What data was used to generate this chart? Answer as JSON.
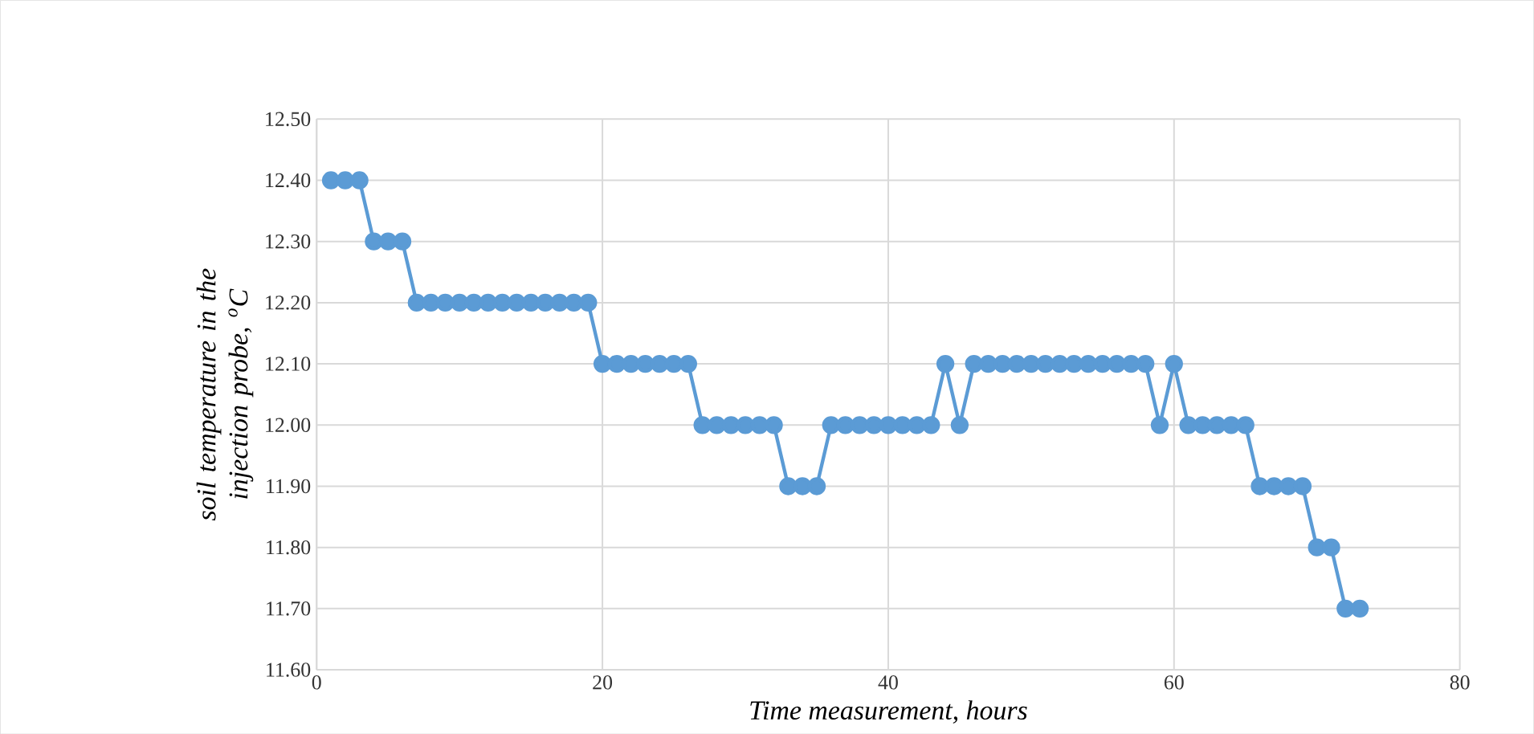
{
  "chart_data": {
    "type": "line",
    "xlabel": "Time measurement, hours",
    "ylabel": "soil temperature in the injection probe, $^{o}$C",
    "x": [
      1,
      2,
      3,
      4,
      5,
      6,
      7,
      8,
      9,
      10,
      11,
      12,
      13,
      14,
      15,
      16,
      17,
      18,
      19,
      20,
      21,
      22,
      23,
      24,
      25,
      26,
      27,
      28,
      29,
      30,
      31,
      32,
      33,
      34,
      35,
      36,
      37,
      38,
      39,
      40,
      41,
      42,
      43,
      44,
      45,
      46,
      47,
      48,
      49,
      50,
      51,
      52,
      53,
      54,
      55,
      56,
      57,
      58,
      59,
      60,
      61,
      62,
      63,
      64,
      65,
      66,
      67,
      68,
      69,
      70,
      71,
      72,
      73
    ],
    "series": [
      {
        "color": "#5b9bd5",
        "values": [
          12.4,
          12.4,
          12.4,
          12.3,
          12.3,
          12.3,
          12.2,
          12.2,
          12.2,
          12.2,
          12.2,
          12.2,
          12.2,
          12.2,
          12.2,
          12.2,
          12.2,
          12.2,
          12.2,
          12.1,
          12.1,
          12.1,
          12.1,
          12.1,
          12.1,
          12.1,
          12.0,
          12.0,
          12.0,
          12.0,
          12.0,
          12.0,
          11.9,
          11.9,
          11.9,
          12.0,
          12.0,
          12.0,
          12.0,
          12.0,
          12.0,
          12.0,
          12.0,
          12.1,
          12.0,
          12.1,
          12.1,
          12.1,
          12.1,
          12.1,
          12.1,
          12.1,
          12.1,
          12.1,
          12.1,
          12.1,
          12.1,
          12.1,
          12.0,
          12.1,
          12.0,
          12.0,
          12.0,
          12.0,
          12.0,
          11.9,
          11.9,
          11.9,
          11.9,
          11.8,
          11.8,
          11.7,
          11.7
        ]
      }
    ],
    "xlim": [
      0,
      80
    ],
    "xticks": [
      0,
      20,
      40,
      60,
      80
    ],
    "ylim": [
      11.6,
      12.5
    ],
    "yticks": [
      {
        "value": 11.6,
        "label": "11.60"
      },
      {
        "value": 11.7,
        "label": "11.70"
      },
      {
        "value": 11.8,
        "label": "11.80"
      },
      {
        "value": 11.9,
        "label": "11.90"
      },
      {
        "value": 12.0,
        "label": "12.00"
      },
      {
        "value": 12.1,
        "label": "12.10"
      },
      {
        "value": 12.2,
        "label": "12.20"
      },
      {
        "value": 12.3,
        "label": "12.30"
      },
      {
        "value": 12.4,
        "label": "12.40"
      },
      {
        "value": 12.5,
        "label": "12.50"
      }
    ],
    "grid": true,
    "marker": "circle",
    "line_style": "solid",
    "legend": false
  }
}
